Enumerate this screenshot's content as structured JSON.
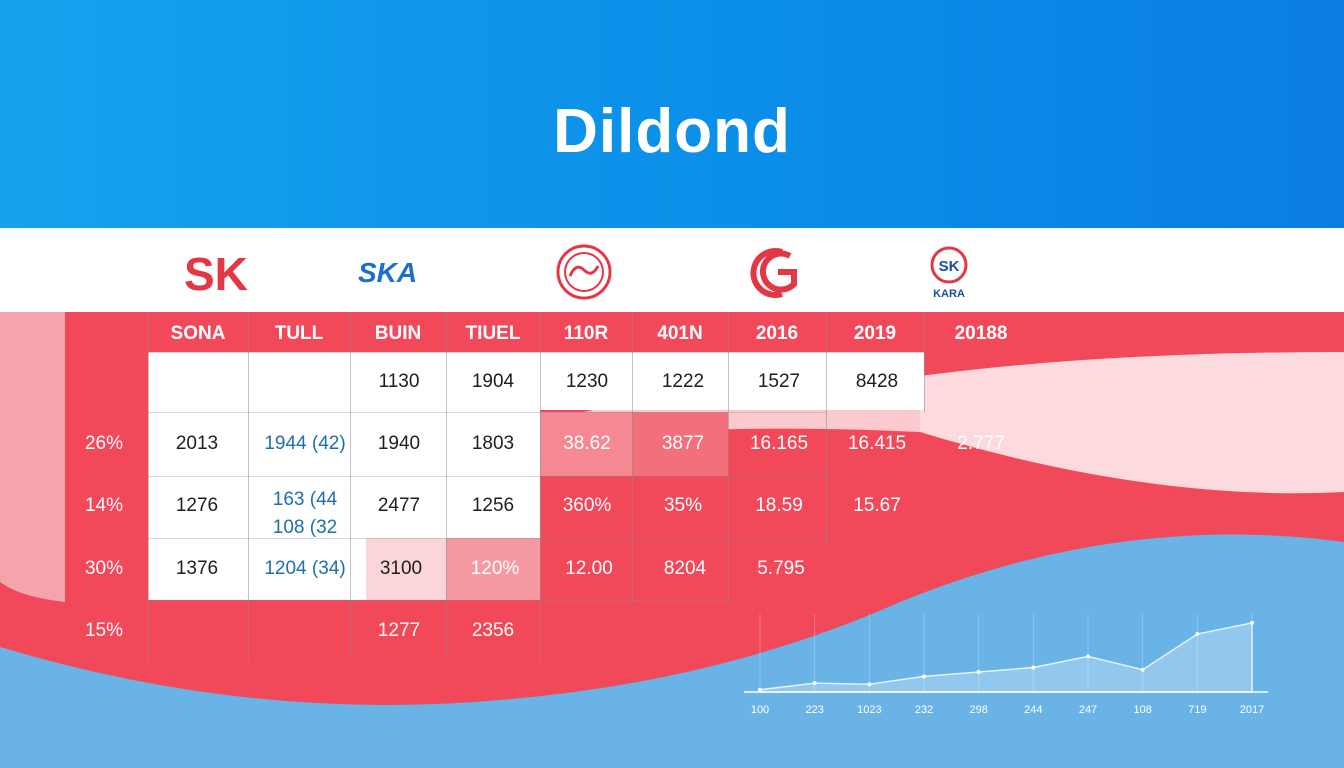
{
  "title": "Dildond",
  "logos": [
    "SK",
    "SKA",
    "",
    "G",
    "SK KARA"
  ],
  "colors": {
    "header_blue": "#0b8fe9",
    "table_red": "#f2495a",
    "wave_blue": "#69b3e7",
    "value_blue": "#1e6fa8"
  },
  "chart_data": [
    {
      "type": "table",
      "columns": [
        "SONA",
        "TULL",
        "BUIN",
        "TIUEL",
        "110R",
        "401N",
        "2016",
        "2019",
        "20188"
      ],
      "row_labels": [
        "",
        "26%",
        "14%",
        "30%",
        "15%"
      ],
      "rows": [
        [
          "",
          "",
          "1130",
          "1904",
          "1230",
          "1222",
          "1527",
          "8428",
          ""
        ],
        [
          "2013",
          "1944 (42)",
          "1940",
          "1803",
          "38.62",
          "3877",
          "16.165",
          "16.415",
          "2.777"
        ],
        [
          "1276",
          "163 (44\n108 (32",
          "2477",
          "1256",
          "360%",
          "35%",
          "18.59",
          "15.67",
          ""
        ],
        [
          "1376",
          "1204 (34)",
          "3100",
          "120%",
          "12.00",
          "8204",
          "5.795",
          "",
          ""
        ],
        [
          "",
          "",
          "1277",
          "2356",
          "",
          "",
          "",
          "",
          ""
        ]
      ]
    },
    {
      "type": "area",
      "x": [
        "100",
        "223",
        "1023",
        "232",
        "298",
        "244",
        "247",
        "108",
        "719",
        "2017"
      ],
      "values": [
        2,
        8,
        7,
        14,
        18,
        22,
        32,
        20,
        52,
        62
      ],
      "ylim": [
        0,
        70
      ],
      "grid": true
    }
  ]
}
